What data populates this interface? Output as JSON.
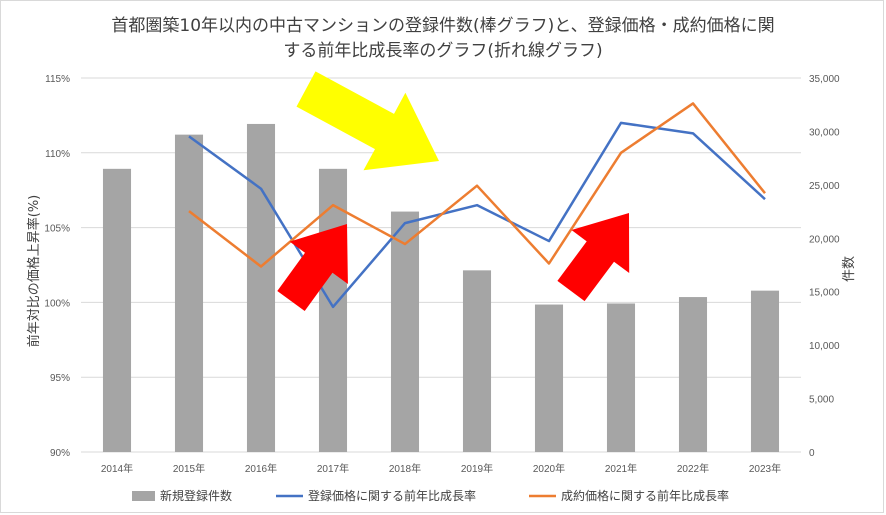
{
  "chart_data": {
    "type": "bar",
    "title_lines": [
      "首都圏築10年以内の中古マンションの登録件数(棒グラフ)と、登録価格・成約価格に関",
      "する前年比成長率のグラフ(折れ線グラフ)"
    ],
    "categories": [
      "2014年",
      "2015年",
      "2016年",
      "2017年",
      "2018年",
      "2019年",
      "2020年",
      "2021年",
      "2022年",
      "2023年"
    ],
    "y_left": {
      "label": "前年対比の価格上昇率(%)",
      "min": 90,
      "max": 115,
      "step": 5,
      "ticks": [
        "90%",
        "95%",
        "100%",
        "105%",
        "110%",
        "115%"
      ]
    },
    "y_right": {
      "label": "件数",
      "min": 0,
      "max": 35000,
      "step": 5000,
      "ticks": [
        "0",
        "5,000",
        "10,000",
        "15,000",
        "20,000",
        "25,000",
        "30,000",
        "35,000"
      ]
    },
    "grid": true,
    "legend_position": "bottom",
    "series": [
      {
        "name": "新規登録件数",
        "kind": "bar",
        "axis": "right",
        "color": "#a5a5a5",
        "values": [
          26500,
          29700,
          30700,
          26500,
          22500,
          17000,
          13800,
          13900,
          14500,
          15100
        ]
      },
      {
        "name": "登録価格に関する前年比成長率",
        "kind": "line",
        "axis": "left",
        "color": "#4472c4",
        "values": [
          null,
          111.1,
          107.6,
          99.7,
          105.3,
          106.5,
          104.1,
          112.0,
          111.3,
          106.9
        ]
      },
      {
        "name": "成約価格に関する前年比成長率",
        "kind": "line",
        "axis": "left",
        "color": "#ed7d31",
        "values": [
          null,
          106.1,
          102.4,
          106.5,
          103.9,
          107.8,
          102.6,
          110.0,
          113.3,
          107.3
        ]
      }
    ],
    "annotations": [
      {
        "shape": "arrow-down-right",
        "color": "#ffff00"
      },
      {
        "shape": "arrow-up-right",
        "color": "#ff0000"
      },
      {
        "shape": "arrow-up-right",
        "color": "#ff0000"
      }
    ]
  }
}
